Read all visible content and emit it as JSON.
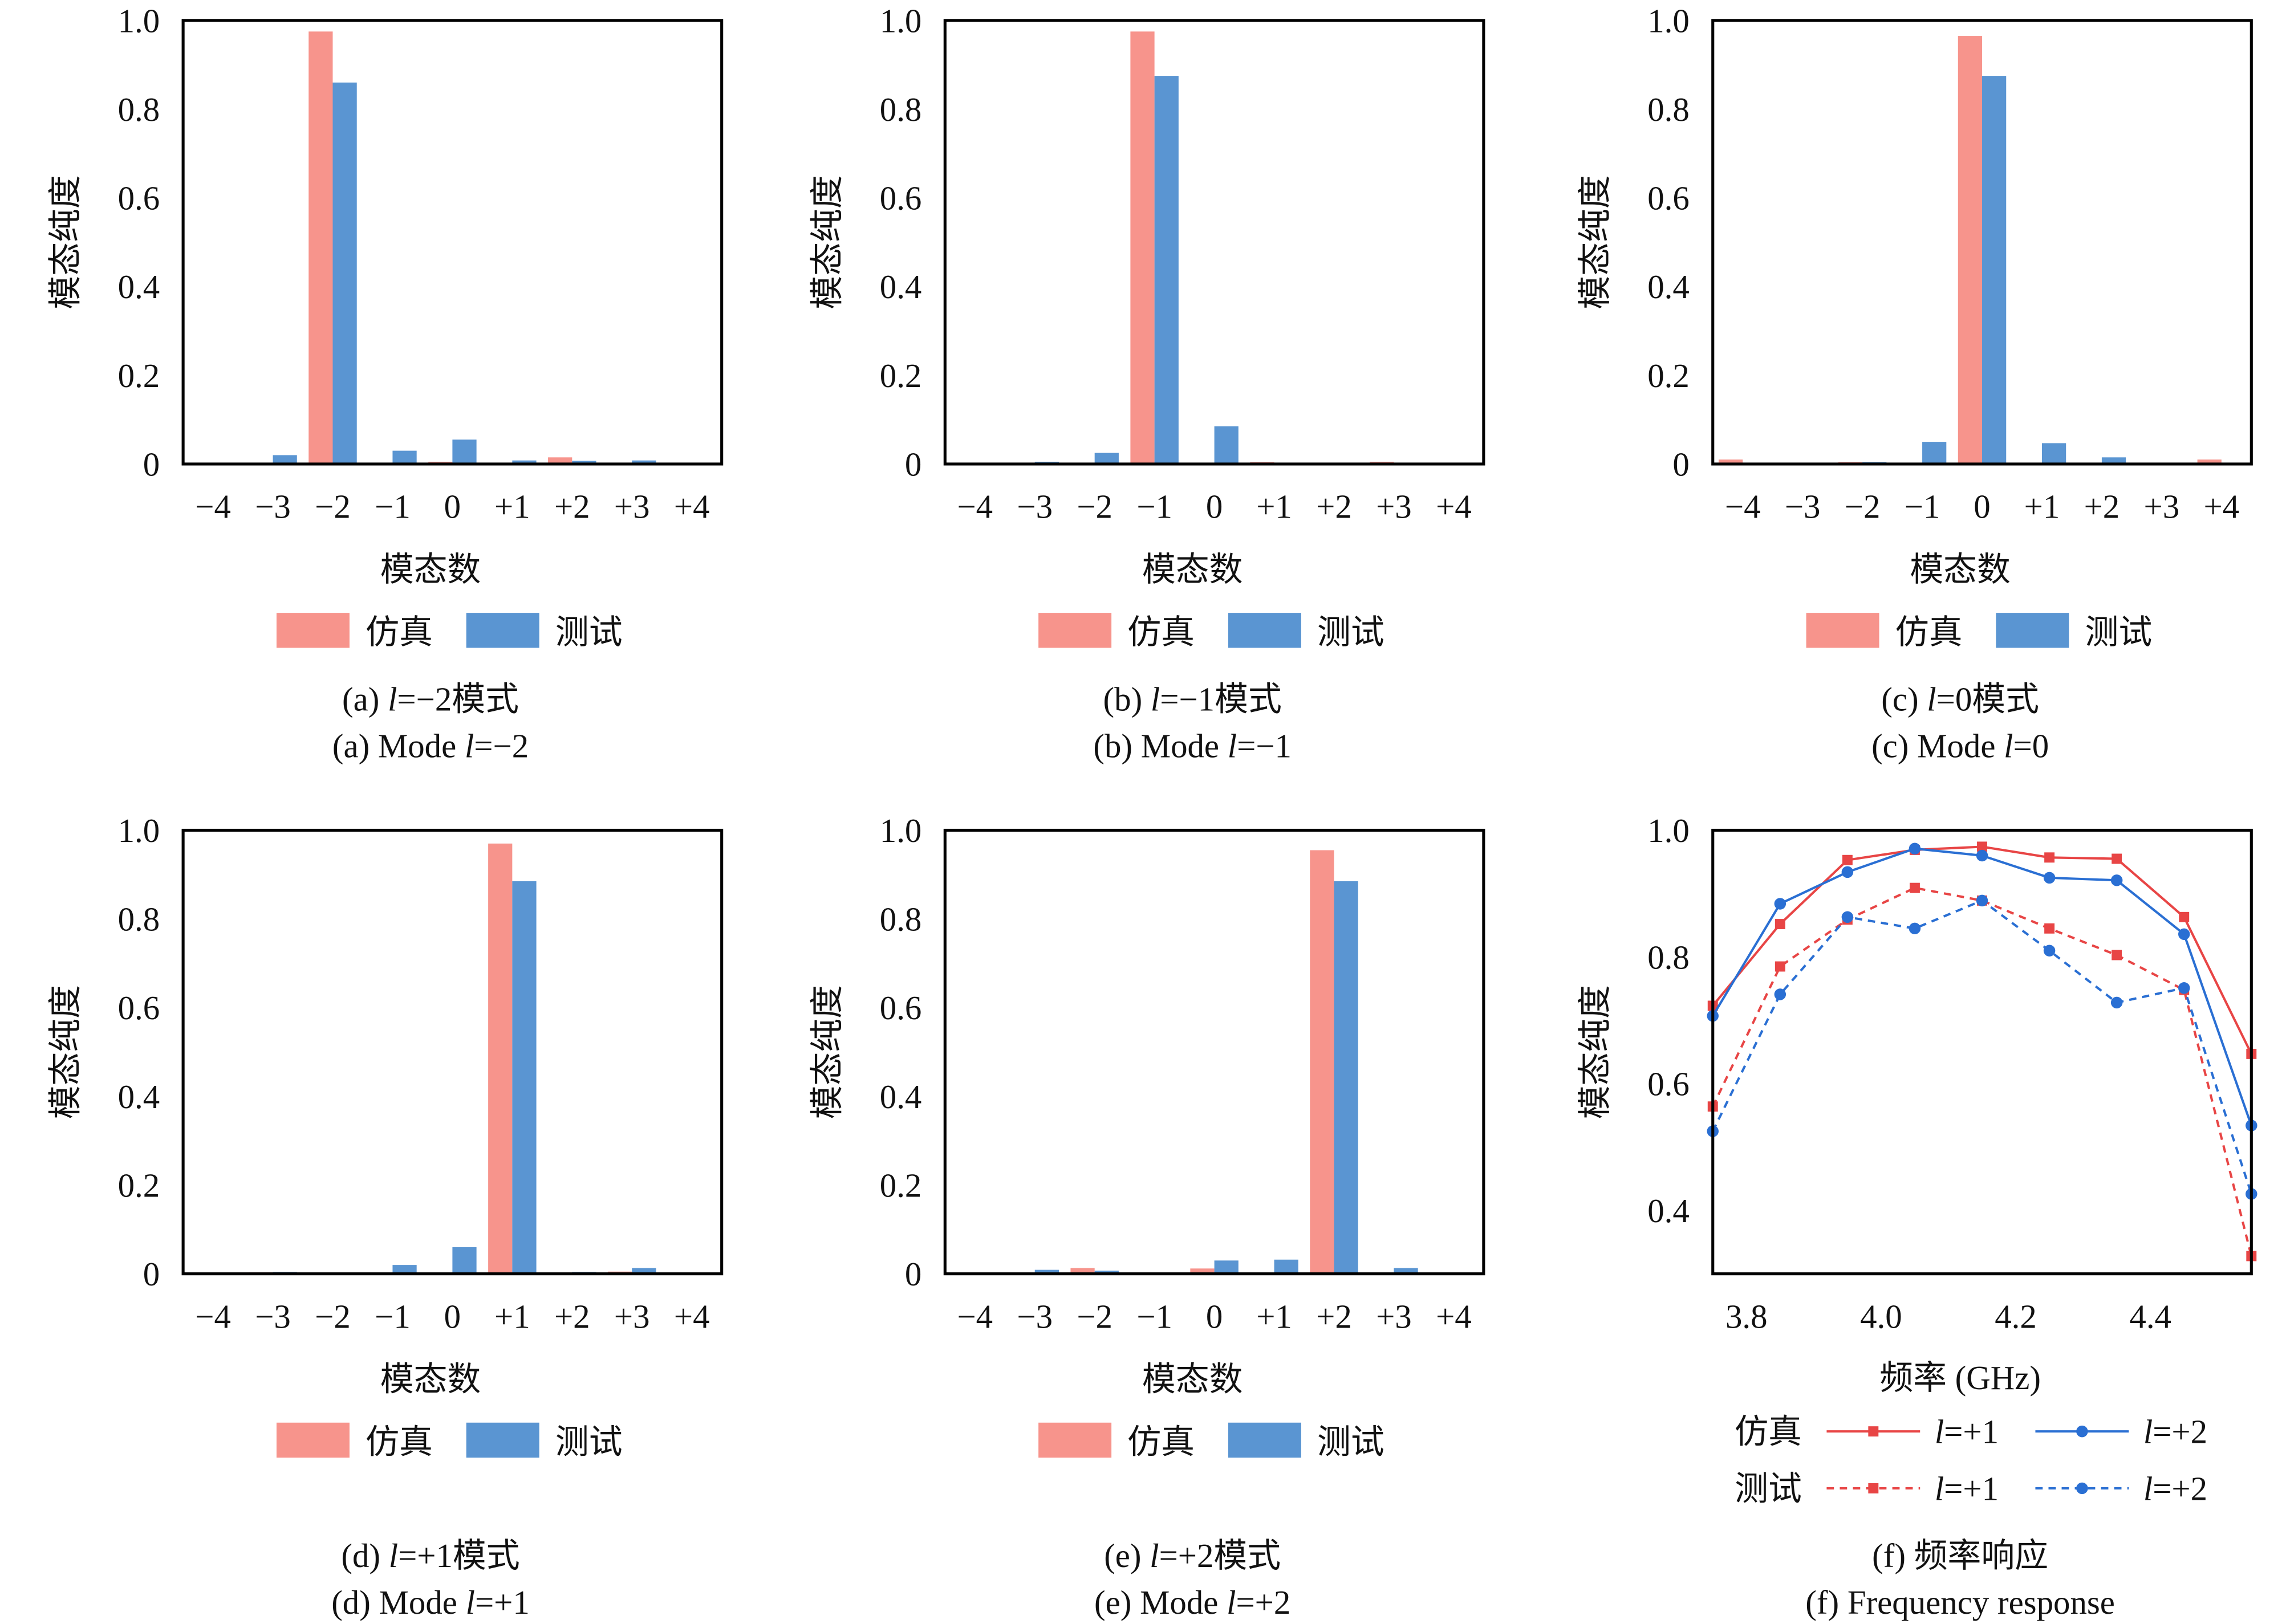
{
  "colors": {
    "sim_bar": "#f7948c",
    "test_bar": "#5a95d2",
    "l1_line": "#e84545",
    "l2_line": "#2a6fd3"
  },
  "chart_data": [
    {
      "type": "bar",
      "panel": "a",
      "ylabel": "模态纯度",
      "xlabel": "模态数",
      "ylim": [
        0,
        1
      ],
      "yticks": [
        "0",
        "0.2",
        "0.4",
        "0.6",
        "0.8",
        "1.0"
      ],
      "categories": [
        "−4",
        "−3",
        "−2",
        "−1",
        "0",
        "+1",
        "+2",
        "+3",
        "+4"
      ],
      "series": [
        {
          "name": "仿真",
          "values": [
            0,
            0,
            0.975,
            0,
            0.005,
            0,
            0.015,
            0,
            0
          ]
        },
        {
          "name": "测试",
          "values": [
            0,
            0.02,
            0.86,
            0.03,
            0.055,
            0.008,
            0.007,
            0.008,
            0
          ]
        }
      ],
      "caption_cn": [
        "(a) ",
        "l",
        "=−2模式"
      ],
      "caption_en": [
        "(a) Mode ",
        "l",
        "=−2"
      ]
    },
    {
      "type": "bar",
      "panel": "b",
      "ylabel": "模态纯度",
      "xlabel": "模态数",
      "ylim": [
        0,
        1
      ],
      "yticks": [
        "0",
        "0.2",
        "0.4",
        "0.6",
        "0.8",
        "1.0"
      ],
      "categories": [
        "−4",
        "−3",
        "−2",
        "−1",
        "0",
        "+1",
        "+2",
        "+3",
        "+4"
      ],
      "series": [
        {
          "name": "仿真",
          "values": [
            0,
            0,
            0,
            0.975,
            0.002,
            0.004,
            0,
            0.005,
            0
          ]
        },
        {
          "name": "测试",
          "values": [
            0,
            0.005,
            0.025,
            0.875,
            0.085,
            0,
            0,
            0,
            0
          ]
        }
      ],
      "caption_cn": [
        "(b) ",
        "l",
        "=−1模式"
      ],
      "caption_en": [
        "(b) Mode ",
        "l",
        "=−1"
      ]
    },
    {
      "type": "bar",
      "panel": "c",
      "ylabel": "模态纯度",
      "xlabel": "模态数",
      "ylim": [
        0,
        1
      ],
      "yticks": [
        "0",
        "0.2",
        "0.4",
        "0.6",
        "0.8",
        "1.0"
      ],
      "categories": [
        "−4",
        "−3",
        "−2",
        "−1",
        "0",
        "+1",
        "+2",
        "+3",
        "+4"
      ],
      "series": [
        {
          "name": "仿真",
          "values": [
            0.01,
            0,
            0.004,
            0,
            0.965,
            0,
            0.003,
            0,
            0.01
          ]
        },
        {
          "name": "测试",
          "values": [
            0,
            0,
            0.004,
            0.05,
            0.875,
            0.047,
            0.015,
            0.002,
            0
          ]
        }
      ],
      "caption_cn": [
        "(c) ",
        "l",
        "=0模式"
      ],
      "caption_en": [
        "(c) Mode ",
        "l",
        "=0"
      ]
    },
    {
      "type": "bar",
      "panel": "d",
      "ylabel": "模态纯度",
      "xlabel": "模态数",
      "ylim": [
        0,
        1
      ],
      "yticks": [
        "0",
        "0.2",
        "0.4",
        "0.6",
        "0.8",
        "1.0"
      ],
      "categories": [
        "−4",
        "−3",
        "−2",
        "−1",
        "0",
        "+1",
        "+2",
        "+3",
        "+4"
      ],
      "series": [
        {
          "name": "仿真",
          "values": [
            0,
            0.003,
            0,
            0.002,
            0.001,
            0.97,
            0,
            0.005,
            0
          ]
        },
        {
          "name": "测试",
          "values": [
            0,
            0.004,
            0,
            0.02,
            0.06,
            0.885,
            0.004,
            0.013,
            0
          ]
        }
      ],
      "caption_cn": [
        "(d) ",
        "l",
        "=+1模式"
      ],
      "caption_en": [
        "(d) Mode ",
        "l",
        "=+1"
      ]
    },
    {
      "type": "bar",
      "panel": "e",
      "ylabel": "模态纯度",
      "xlabel": "模态数",
      "ylim": [
        0,
        1
      ],
      "yticks": [
        "0",
        "0.2",
        "0.4",
        "0.6",
        "0.8",
        "1.0"
      ],
      "categories": [
        "−4",
        "−3",
        "−2",
        "−1",
        "0",
        "+1",
        "+2",
        "+3",
        "+4"
      ],
      "series": [
        {
          "name": "仿真",
          "values": [
            0,
            0,
            0.013,
            0,
            0.012,
            0,
            0.955,
            0,
            0.002
          ]
        },
        {
          "name": "测试",
          "values": [
            0,
            0.009,
            0.007,
            0.002,
            0.03,
            0.032,
            0.885,
            0.013,
            0.002
          ]
        }
      ],
      "caption_cn": [
        "(e) ",
        "l",
        "=+2模式"
      ],
      "caption_en": [
        "(e) Mode ",
        "l",
        "=+2"
      ]
    },
    {
      "type": "line",
      "panel": "f",
      "ylabel": "模态纯度",
      "xlabel": "频率 (GHz)",
      "xlim": [
        3.75,
        4.55
      ],
      "ylim": [
        0.3,
        1.0
      ],
      "xticks": [
        "3.8",
        "4.0",
        "4.2",
        "4.4"
      ],
      "yticks": [
        "0.4",
        "0.6",
        "0.8",
        "1.0"
      ],
      "x": [
        3.75,
        3.85,
        3.95,
        4.05,
        4.15,
        4.25,
        4.35,
        4.45,
        4.55
      ],
      "legend_groups": [
        "仿真",
        "测试"
      ],
      "series": [
        {
          "group": "仿真",
          "name": "l=+1",
          "label_var": "l",
          "label_rest": "=+1",
          "style": "solid",
          "marker": "square",
          "color": "#e84545",
          "values": [
            0.723,
            0.852,
            0.953,
            0.969,
            0.974,
            0.957,
            0.955,
            0.863,
            0.647
          ]
        },
        {
          "group": "仿真",
          "name": "l=+2",
          "label_var": "l",
          "label_rest": "=+2",
          "style": "solid",
          "marker": "circle",
          "color": "#2a6fd3",
          "values": [
            0.707,
            0.884,
            0.934,
            0.971,
            0.96,
            0.925,
            0.921,
            0.836,
            0.534
          ]
        },
        {
          "group": "测试",
          "name": "l=+1",
          "label_var": "l",
          "label_rest": "=+1",
          "style": "dashed",
          "marker": "square",
          "color": "#e84545",
          "values": [
            0.564,
            0.785,
            0.859,
            0.909,
            0.889,
            0.845,
            0.803,
            0.748,
            0.328
          ]
        },
        {
          "group": "测试",
          "name": "l=+2",
          "label_var": "l",
          "label_rest": "=+2",
          "style": "dashed",
          "marker": "circle",
          "color": "#2a6fd3",
          "values": [
            0.525,
            0.741,
            0.863,
            0.845,
            0.889,
            0.81,
            0.728,
            0.751,
            0.426
          ]
        }
      ],
      "caption_cn": [
        "(f) 频率响应"
      ],
      "caption_en": [
        "(f) Frequency response"
      ]
    }
  ]
}
